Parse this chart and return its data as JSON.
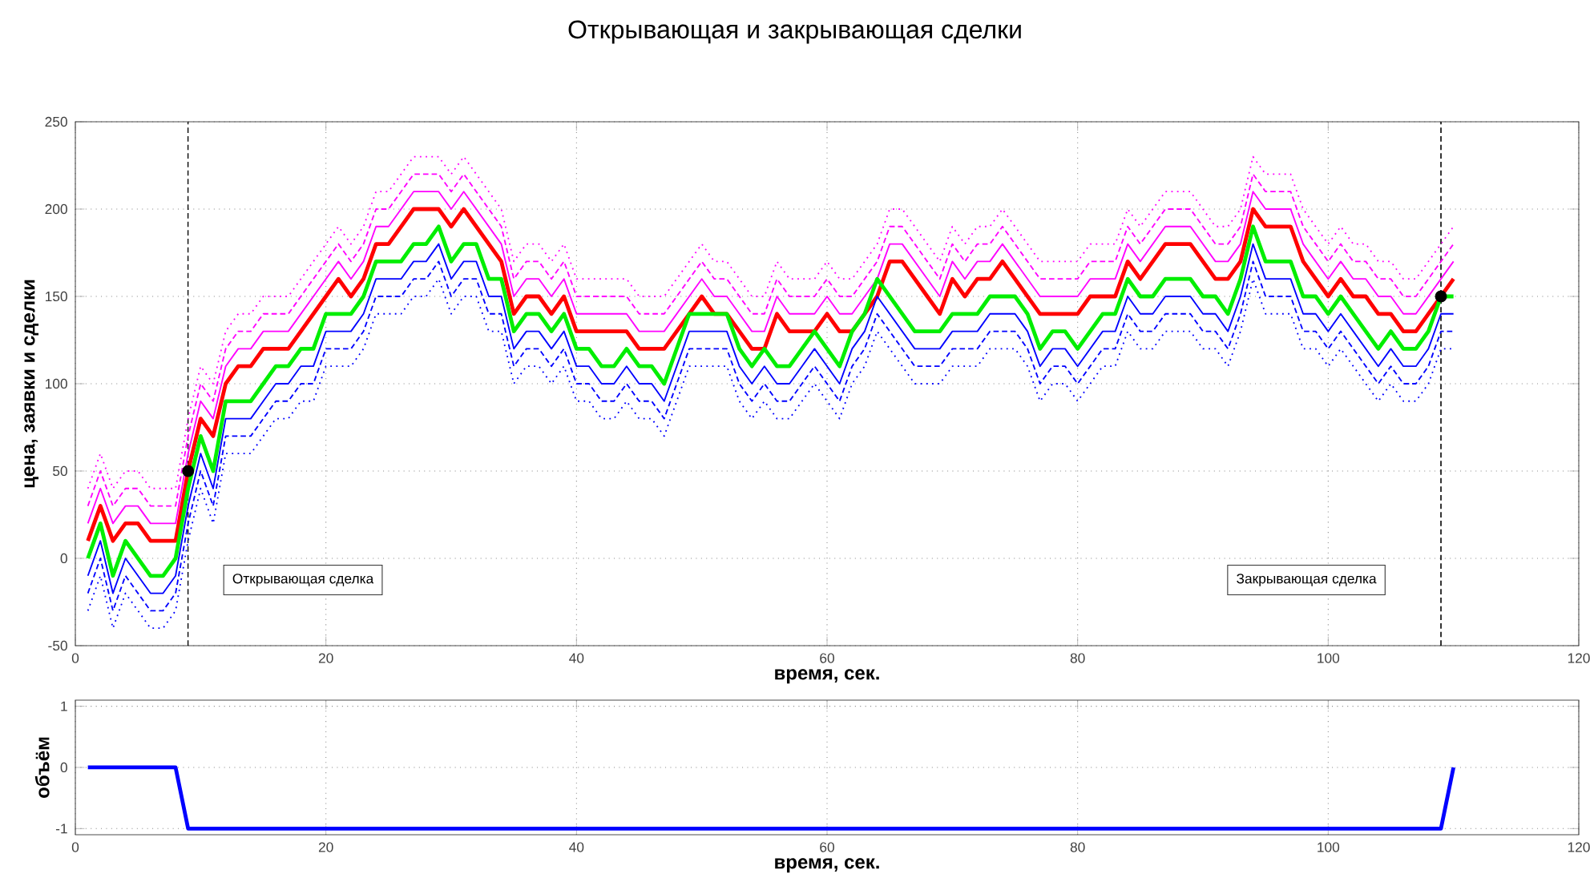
{
  "chart_data": [
    {
      "type": "line",
      "title": "Открывающая и закрывающая сделки",
      "xlabel": "время, сек.",
      "ylabel": "цена, заявки и сделки",
      "xlim": [
        0,
        120
      ],
      "ylim": [
        -50,
        250
      ],
      "xticks": [
        0,
        20,
        40,
        60,
        80,
        100,
        120
      ],
      "yticks": [
        -50,
        0,
        50,
        100,
        150,
        200,
        250
      ],
      "grid": true,
      "x": [
        1,
        2,
        3,
        4,
        5,
        6,
        7,
        8,
        9,
        10,
        11,
        12,
        13,
        14,
        15,
        16,
        17,
        18,
        19,
        20,
        21,
        22,
        23,
        24,
        25,
        26,
        27,
        28,
        29,
        30,
        31,
        32,
        33,
        34,
        35,
        36,
        37,
        38,
        39,
        40,
        41,
        42,
        43,
        44,
        45,
        46,
        47,
        48,
        49,
        50,
        51,
        52,
        53,
        54,
        55,
        56,
        57,
        58,
        59,
        60,
        61,
        62,
        63,
        64,
        65,
        66,
        67,
        68,
        69,
        70,
        71,
        72,
        73,
        74,
        75,
        76,
        77,
        78,
        79,
        80,
        81,
        82,
        83,
        84,
        85,
        86,
        87,
        88,
        89,
        90,
        91,
        92,
        93,
        94,
        95,
        96,
        97,
        98,
        99,
        100,
        101,
        102,
        103,
        104,
        105,
        106,
        107,
        108,
        109,
        110
      ],
      "series": [
        {
          "color": "#ff0000",
          "line_style": "solid",
          "values": [
            10,
            30,
            10,
            20,
            20,
            10,
            10,
            10,
            50,
            80,
            70,
            100,
            110,
            110,
            120,
            120,
            120,
            130,
            140,
            150,
            160,
            150,
            160,
            180,
            180,
            190,
            200,
            200,
            200,
            190,
            200,
            190,
            180,
            170,
            140,
            150,
            150,
            140,
            150,
            130,
            130,
            130,
            130,
            130,
            120,
            120,
            120,
            130,
            140,
            150,
            140,
            140,
            130,
            120,
            120,
            140,
            130,
            130,
            130,
            140,
            130,
            130,
            140,
            150,
            170,
            170,
            160,
            150,
            140,
            160,
            150,
            160,
            160,
            170,
            160,
            150,
            140,
            140,
            140,
            140,
            150,
            150,
            150,
            170,
            160,
            170,
            180,
            180,
            180,
            170,
            160,
            160,
            170,
            200,
            190,
            190,
            190,
            170,
            160,
            150,
            160,
            150,
            150,
            140,
            140,
            130,
            130,
            140,
            150,
            160
          ]
        },
        {
          "color": "#ff00ff",
          "line_style": "solid",
          "values": [
            20,
            40,
            20,
            30,
            30,
            20,
            20,
            20,
            60,
            90,
            80,
            110,
            120,
            120,
            130,
            130,
            130,
            140,
            150,
            160,
            170,
            160,
            170,
            190,
            190,
            200,
            210,
            210,
            210,
            200,
            210,
            200,
            190,
            180,
            150,
            160,
            160,
            150,
            160,
            140,
            140,
            140,
            140,
            140,
            130,
            130,
            130,
            140,
            150,
            160,
            150,
            150,
            140,
            130,
            130,
            150,
            140,
            140,
            140,
            150,
            140,
            140,
            150,
            160,
            180,
            180,
            170,
            160,
            150,
            170,
            160,
            170,
            170,
            180,
            170,
            160,
            150,
            150,
            150,
            150,
            160,
            160,
            160,
            180,
            170,
            180,
            190,
            190,
            190,
            180,
            170,
            170,
            180,
            210,
            200,
            200,
            200,
            180,
            170,
            160,
            170,
            160,
            160,
            150,
            150,
            140,
            140,
            150,
            160,
            170
          ]
        },
        {
          "color": "#ff00ff",
          "line_style": "dashed",
          "values": [
            30,
            50,
            30,
            40,
            40,
            30,
            30,
            30,
            70,
            100,
            90,
            120,
            130,
            130,
            140,
            140,
            140,
            150,
            160,
            170,
            180,
            170,
            180,
            200,
            200,
            210,
            220,
            220,
            220,
            210,
            220,
            210,
            200,
            190,
            160,
            170,
            170,
            160,
            170,
            150,
            150,
            150,
            150,
            150,
            140,
            140,
            140,
            150,
            160,
            170,
            160,
            160,
            150,
            140,
            140,
            160,
            150,
            150,
            150,
            160,
            150,
            150,
            160,
            170,
            190,
            190,
            180,
            170,
            160,
            180,
            170,
            180,
            180,
            190,
            180,
            170,
            160,
            160,
            160,
            160,
            170,
            170,
            170,
            190,
            180,
            190,
            200,
            200,
            200,
            190,
            180,
            180,
            190,
            220,
            210,
            210,
            210,
            190,
            180,
            170,
            180,
            170,
            170,
            160,
            160,
            150,
            150,
            160,
            170,
            180
          ]
        },
        {
          "color": "#ff00ff",
          "line_style": "dotted",
          "values": [
            40,
            60,
            40,
            50,
            50,
            40,
            40,
            40,
            80,
            110,
            100,
            130,
            140,
            140,
            150,
            150,
            150,
            160,
            170,
            180,
            190,
            180,
            190,
            210,
            210,
            220,
            230,
            230,
            230,
            220,
            230,
            220,
            210,
            200,
            170,
            180,
            180,
            170,
            180,
            160,
            160,
            160,
            160,
            160,
            150,
            150,
            150,
            160,
            170,
            180,
            170,
            170,
            160,
            150,
            150,
            170,
            160,
            160,
            160,
            170,
            160,
            160,
            170,
            180,
            200,
            200,
            190,
            180,
            170,
            190,
            180,
            190,
            190,
            200,
            190,
            180,
            170,
            170,
            170,
            170,
            180,
            180,
            180,
            200,
            190,
            200,
            210,
            210,
            210,
            200,
            190,
            190,
            200,
            230,
            220,
            220,
            220,
            200,
            190,
            180,
            190,
            180,
            180,
            170,
            170,
            160,
            160,
            170,
            180,
            190
          ]
        },
        {
          "color": "#00ee00",
          "line_style": "solid",
          "values": [
            0,
            20,
            -10,
            10,
            0,
            -10,
            -10,
            0,
            40,
            70,
            50,
            90,
            90,
            90,
            100,
            110,
            110,
            120,
            120,
            140,
            140,
            140,
            150,
            170,
            170,
            170,
            180,
            180,
            190,
            170,
            180,
            180,
            160,
            160,
            130,
            140,
            140,
            130,
            140,
            120,
            120,
            110,
            110,
            120,
            110,
            110,
            100,
            120,
            140,
            140,
            140,
            140,
            120,
            110,
            120,
            110,
            110,
            120,
            130,
            120,
            110,
            130,
            140,
            160,
            150,
            140,
            130,
            130,
            130,
            140,
            140,
            140,
            150,
            150,
            150,
            140,
            120,
            130,
            130,
            120,
            130,
            140,
            140,
            160,
            150,
            150,
            160,
            160,
            160,
            150,
            150,
            140,
            160,
            190,
            170,
            170,
            170,
            150,
            150,
            140,
            150,
            140,
            130,
            120,
            130,
            120,
            120,
            130,
            150,
            150
          ]
        },
        {
          "color": "#0000ff",
          "line_style": "solid",
          "values": [
            -10,
            10,
            -20,
            0,
            -10,
            -20,
            -20,
            -10,
            30,
            60,
            40,
            80,
            80,
            80,
            90,
            100,
            100,
            110,
            110,
            130,
            130,
            130,
            140,
            160,
            160,
            160,
            170,
            170,
            180,
            160,
            170,
            170,
            150,
            150,
            120,
            130,
            130,
            120,
            130,
            110,
            110,
            100,
            100,
            110,
            100,
            100,
            90,
            110,
            130,
            130,
            130,
            130,
            110,
            100,
            110,
            100,
            100,
            110,
            120,
            110,
            100,
            120,
            130,
            150,
            140,
            130,
            120,
            120,
            120,
            130,
            130,
            130,
            140,
            140,
            140,
            130,
            110,
            120,
            120,
            110,
            120,
            130,
            130,
            150,
            140,
            140,
            150,
            150,
            150,
            140,
            140,
            130,
            150,
            180,
            160,
            160,
            160,
            140,
            140,
            130,
            140,
            130,
            120,
            110,
            120,
            110,
            110,
            120,
            140,
            140
          ]
        },
        {
          "color": "#0000ff",
          "line_style": "dashed",
          "values": [
            -20,
            0,
            -30,
            -10,
            -20,
            -30,
            -30,
            -20,
            20,
            50,
            30,
            70,
            70,
            70,
            80,
            90,
            90,
            100,
            100,
            120,
            120,
            120,
            130,
            150,
            150,
            150,
            160,
            160,
            170,
            150,
            160,
            160,
            140,
            140,
            110,
            120,
            120,
            110,
            120,
            100,
            100,
            90,
            90,
            100,
            90,
            90,
            80,
            100,
            120,
            120,
            120,
            120,
            100,
            90,
            100,
            90,
            90,
            100,
            110,
            100,
            90,
            110,
            120,
            140,
            130,
            120,
            110,
            110,
            110,
            120,
            120,
            120,
            130,
            130,
            130,
            120,
            100,
            110,
            110,
            100,
            110,
            120,
            120,
            140,
            130,
            130,
            140,
            140,
            140,
            130,
            130,
            120,
            140,
            170,
            150,
            150,
            150,
            130,
            130,
            120,
            130,
            120,
            110,
            100,
            110,
            100,
            100,
            110,
            130,
            130
          ]
        },
        {
          "color": "#0000ff",
          "line_style": "dotted",
          "values": [
            -30,
            -10,
            -40,
            -20,
            -30,
            -40,
            -40,
            -30,
            10,
            40,
            20,
            60,
            60,
            60,
            70,
            80,
            80,
            90,
            90,
            110,
            110,
            110,
            120,
            140,
            140,
            140,
            150,
            150,
            160,
            140,
            150,
            150,
            130,
            130,
            100,
            110,
            110,
            100,
            110,
            90,
            90,
            80,
            80,
            90,
            80,
            80,
            70,
            90,
            110,
            110,
            110,
            110,
            90,
            80,
            90,
            80,
            80,
            90,
            100,
            90,
            80,
            100,
            110,
            130,
            120,
            110,
            100,
            100,
            100,
            110,
            110,
            110,
            120,
            120,
            120,
            110,
            90,
            100,
            100,
            90,
            100,
            110,
            110,
            130,
            120,
            120,
            130,
            130,
            130,
            120,
            120,
            110,
            130,
            160,
            140,
            140,
            140,
            120,
            120,
            110,
            120,
            110,
            100,
            90,
            100,
            90,
            90,
            100,
            120,
            120
          ]
        },
        {
          "type": "scatter",
          "marker": "circle",
          "color": "#000000",
          "x": [
            9,
            109
          ],
          "values": [
            50,
            150
          ]
        }
      ],
      "ref_lines": [
        {
          "axis": "x",
          "value": 9,
          "color": "#000000",
          "line_style": "dashed"
        },
        {
          "axis": "x",
          "value": 109,
          "color": "#000000",
          "line_style": "dashed"
        }
      ],
      "annotations": [
        "Открывающая сделка",
        "Закрывающая сделка"
      ]
    },
    {
      "type": "line",
      "xlabel": "время, сек.",
      "ylabel": "объём",
      "xlim": [
        0,
        120
      ],
      "ylim": [
        -1.1,
        1.1
      ],
      "xticks": [
        0,
        20,
        40,
        60,
        80,
        100,
        120
      ],
      "yticks": [
        -1,
        0,
        1
      ],
      "grid": true,
      "x": [
        1,
        8,
        9,
        109,
        110
      ],
      "series": [
        {
          "color": "#0000ff",
          "line_style": "solid",
          "values": [
            0,
            0,
            -1,
            -1,
            0
          ]
        }
      ]
    }
  ]
}
